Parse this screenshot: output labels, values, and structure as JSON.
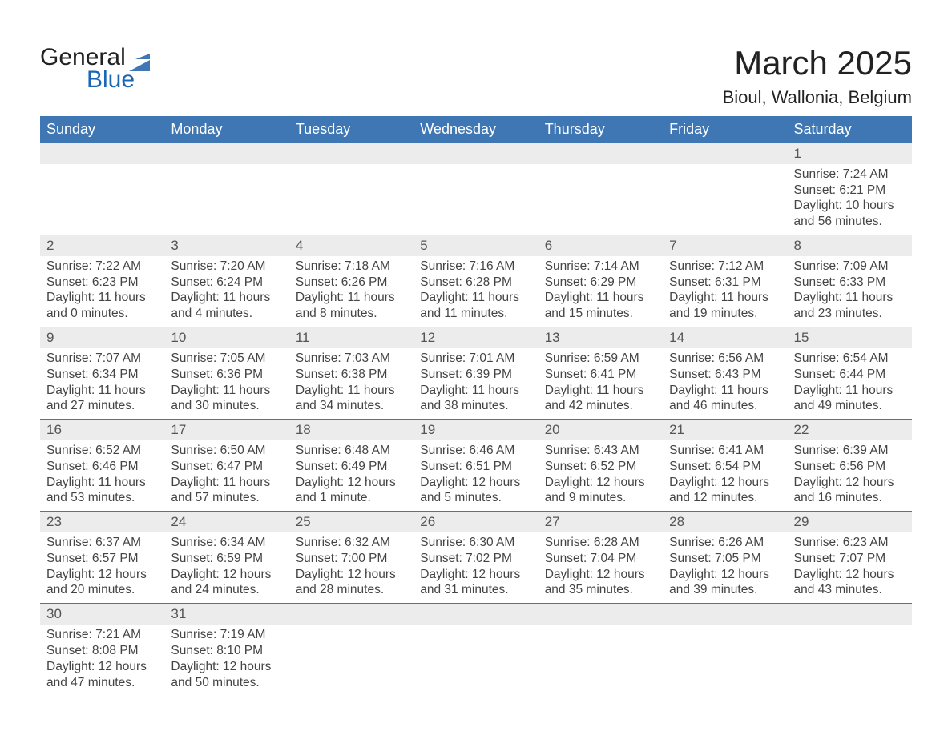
{
  "brand": {
    "word1": "General",
    "word2": "Blue",
    "accent": "#3f77b5"
  },
  "title": "March 2025",
  "location": "Bioul, Wallonia, Belgium",
  "header_bg": "#3f77b5",
  "header_fg": "#ffffff",
  "daybar_bg": "#ececec",
  "daybar_border": "#3f77b5",
  "text_color": "#444444",
  "daynames": [
    "Sunday",
    "Monday",
    "Tuesday",
    "Wednesday",
    "Thursday",
    "Friday",
    "Saturday"
  ],
  "weeks": [
    [
      null,
      null,
      null,
      null,
      null,
      null,
      {
        "num": "1",
        "sunrise": "Sunrise: 7:24 AM",
        "sunset": "Sunset: 6:21 PM",
        "daylight": "Daylight: 10 hours and 56 minutes."
      }
    ],
    [
      {
        "num": "2",
        "sunrise": "Sunrise: 7:22 AM",
        "sunset": "Sunset: 6:23 PM",
        "daylight": "Daylight: 11 hours and 0 minutes."
      },
      {
        "num": "3",
        "sunrise": "Sunrise: 7:20 AM",
        "sunset": "Sunset: 6:24 PM",
        "daylight": "Daylight: 11 hours and 4 minutes."
      },
      {
        "num": "4",
        "sunrise": "Sunrise: 7:18 AM",
        "sunset": "Sunset: 6:26 PM",
        "daylight": "Daylight: 11 hours and 8 minutes."
      },
      {
        "num": "5",
        "sunrise": "Sunrise: 7:16 AM",
        "sunset": "Sunset: 6:28 PM",
        "daylight": "Daylight: 11 hours and 11 minutes."
      },
      {
        "num": "6",
        "sunrise": "Sunrise: 7:14 AM",
        "sunset": "Sunset: 6:29 PM",
        "daylight": "Daylight: 11 hours and 15 minutes."
      },
      {
        "num": "7",
        "sunrise": "Sunrise: 7:12 AM",
        "sunset": "Sunset: 6:31 PM",
        "daylight": "Daylight: 11 hours and 19 minutes."
      },
      {
        "num": "8",
        "sunrise": "Sunrise: 7:09 AM",
        "sunset": "Sunset: 6:33 PM",
        "daylight": "Daylight: 11 hours and 23 minutes."
      }
    ],
    [
      {
        "num": "9",
        "sunrise": "Sunrise: 7:07 AM",
        "sunset": "Sunset: 6:34 PM",
        "daylight": "Daylight: 11 hours and 27 minutes."
      },
      {
        "num": "10",
        "sunrise": "Sunrise: 7:05 AM",
        "sunset": "Sunset: 6:36 PM",
        "daylight": "Daylight: 11 hours and 30 minutes."
      },
      {
        "num": "11",
        "sunrise": "Sunrise: 7:03 AM",
        "sunset": "Sunset: 6:38 PM",
        "daylight": "Daylight: 11 hours and 34 minutes."
      },
      {
        "num": "12",
        "sunrise": "Sunrise: 7:01 AM",
        "sunset": "Sunset: 6:39 PM",
        "daylight": "Daylight: 11 hours and 38 minutes."
      },
      {
        "num": "13",
        "sunrise": "Sunrise: 6:59 AM",
        "sunset": "Sunset: 6:41 PM",
        "daylight": "Daylight: 11 hours and 42 minutes."
      },
      {
        "num": "14",
        "sunrise": "Sunrise: 6:56 AM",
        "sunset": "Sunset: 6:43 PM",
        "daylight": "Daylight: 11 hours and 46 minutes."
      },
      {
        "num": "15",
        "sunrise": "Sunrise: 6:54 AM",
        "sunset": "Sunset: 6:44 PM",
        "daylight": "Daylight: 11 hours and 49 minutes."
      }
    ],
    [
      {
        "num": "16",
        "sunrise": "Sunrise: 6:52 AM",
        "sunset": "Sunset: 6:46 PM",
        "daylight": "Daylight: 11 hours and 53 minutes."
      },
      {
        "num": "17",
        "sunrise": "Sunrise: 6:50 AM",
        "sunset": "Sunset: 6:47 PM",
        "daylight": "Daylight: 11 hours and 57 minutes."
      },
      {
        "num": "18",
        "sunrise": "Sunrise: 6:48 AM",
        "sunset": "Sunset: 6:49 PM",
        "daylight": "Daylight: 12 hours and 1 minute."
      },
      {
        "num": "19",
        "sunrise": "Sunrise: 6:46 AM",
        "sunset": "Sunset: 6:51 PM",
        "daylight": "Daylight: 12 hours and 5 minutes."
      },
      {
        "num": "20",
        "sunrise": "Sunrise: 6:43 AM",
        "sunset": "Sunset: 6:52 PM",
        "daylight": "Daylight: 12 hours and 9 minutes."
      },
      {
        "num": "21",
        "sunrise": "Sunrise: 6:41 AM",
        "sunset": "Sunset: 6:54 PM",
        "daylight": "Daylight: 12 hours and 12 minutes."
      },
      {
        "num": "22",
        "sunrise": "Sunrise: 6:39 AM",
        "sunset": "Sunset: 6:56 PM",
        "daylight": "Daylight: 12 hours and 16 minutes."
      }
    ],
    [
      {
        "num": "23",
        "sunrise": "Sunrise: 6:37 AM",
        "sunset": "Sunset: 6:57 PM",
        "daylight": "Daylight: 12 hours and 20 minutes."
      },
      {
        "num": "24",
        "sunrise": "Sunrise: 6:34 AM",
        "sunset": "Sunset: 6:59 PM",
        "daylight": "Daylight: 12 hours and 24 minutes."
      },
      {
        "num": "25",
        "sunrise": "Sunrise: 6:32 AM",
        "sunset": "Sunset: 7:00 PM",
        "daylight": "Daylight: 12 hours and 28 minutes."
      },
      {
        "num": "26",
        "sunrise": "Sunrise: 6:30 AM",
        "sunset": "Sunset: 7:02 PM",
        "daylight": "Daylight: 12 hours and 31 minutes."
      },
      {
        "num": "27",
        "sunrise": "Sunrise: 6:28 AM",
        "sunset": "Sunset: 7:04 PM",
        "daylight": "Daylight: 12 hours and 35 minutes."
      },
      {
        "num": "28",
        "sunrise": "Sunrise: 6:26 AM",
        "sunset": "Sunset: 7:05 PM",
        "daylight": "Daylight: 12 hours and 39 minutes."
      },
      {
        "num": "29",
        "sunrise": "Sunrise: 6:23 AM",
        "sunset": "Sunset: 7:07 PM",
        "daylight": "Daylight: 12 hours and 43 minutes."
      }
    ],
    [
      {
        "num": "30",
        "sunrise": "Sunrise: 7:21 AM",
        "sunset": "Sunset: 8:08 PM",
        "daylight": "Daylight: 12 hours and 47 minutes."
      },
      {
        "num": "31",
        "sunrise": "Sunrise: 7:19 AM",
        "sunset": "Sunset: 8:10 PM",
        "daylight": "Daylight: 12 hours and 50 minutes."
      },
      null,
      null,
      null,
      null,
      null
    ]
  ]
}
